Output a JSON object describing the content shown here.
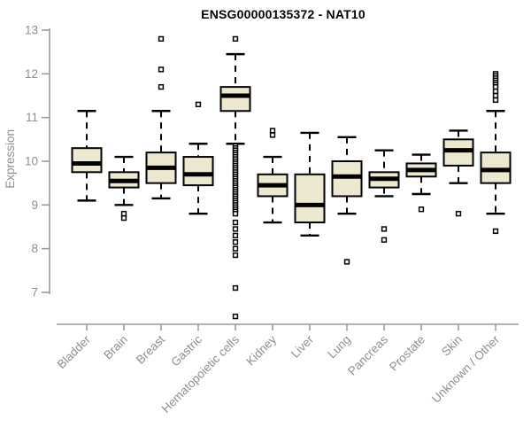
{
  "chart_data": {
    "type": "boxplot",
    "title": "ENSG00000135372 - NAT10",
    "ylabel": "Expression",
    "ylim": [
      7,
      13
    ],
    "yticks": [
      7,
      8,
      9,
      10,
      11,
      12,
      13
    ],
    "grid": false,
    "categories": [
      "Bladder",
      "Brain",
      "Breast",
      "Gastric",
      "Hematopoietic cells",
      "Kidney",
      "Liver",
      "Lung",
      "Pancreas",
      "Prostate",
      "Skin",
      "Unknown / Other"
    ],
    "series": [
      {
        "category": "Bladder",
        "whisker_low": 9.1,
        "q1": 9.75,
        "median": 9.95,
        "q3": 10.3,
        "whisker_high": 11.15,
        "outliers": []
      },
      {
        "category": "Brain",
        "whisker_low": 9.0,
        "q1": 9.4,
        "median": 9.55,
        "q3": 9.75,
        "whisker_high": 10.1,
        "outliers": [
          8.8,
          8.7
        ]
      },
      {
        "category": "Breast",
        "whisker_low": 9.15,
        "q1": 9.5,
        "median": 9.85,
        "q3": 10.2,
        "whisker_high": 11.15,
        "outliers": [
          12.8,
          12.1,
          11.7
        ]
      },
      {
        "category": "Gastric",
        "whisker_low": 8.8,
        "q1": 9.45,
        "median": 9.7,
        "q3": 10.1,
        "whisker_high": 10.4,
        "outliers": [
          11.3
        ]
      },
      {
        "category": "Hematopoietic cells",
        "whisker_low": 10.4,
        "q1": 11.15,
        "median": 11.5,
        "q3": 11.7,
        "whisker_high": 12.45,
        "outliers": [
          12.8,
          10.35,
          10.3,
          10.25,
          10.2,
          10.15,
          10.1,
          10.05,
          10.0,
          9.95,
          9.9,
          9.85,
          9.8,
          9.75,
          9.7,
          9.65,
          9.6,
          9.55,
          9.5,
          9.45,
          9.4,
          9.35,
          9.3,
          9.25,
          9.2,
          9.15,
          9.1,
          9.05,
          9.0,
          8.95,
          8.9,
          8.85,
          8.8,
          8.6,
          8.45,
          8.3,
          8.15,
          8.0,
          7.85,
          7.1,
          6.45
        ]
      },
      {
        "category": "Kidney",
        "whisker_low": 8.6,
        "q1": 9.2,
        "median": 9.45,
        "q3": 9.7,
        "whisker_high": 10.1,
        "outliers": [
          10.7,
          10.6
        ]
      },
      {
        "category": "Liver",
        "whisker_low": 8.3,
        "q1": 8.6,
        "median": 9.0,
        "q3": 9.7,
        "whisker_high": 10.65,
        "outliers": []
      },
      {
        "category": "Lung",
        "whisker_low": 8.8,
        "q1": 9.2,
        "median": 9.65,
        "q3": 10.0,
        "whisker_high": 10.55,
        "outliers": [
          7.7
        ]
      },
      {
        "category": "Pancreas",
        "whisker_low": 9.2,
        "q1": 9.4,
        "median": 9.6,
        "q3": 9.75,
        "whisker_high": 10.25,
        "outliers": [
          8.45,
          8.2
        ]
      },
      {
        "category": "Prostate",
        "whisker_low": 9.25,
        "q1": 9.65,
        "median": 9.8,
        "q3": 9.95,
        "whisker_high": 10.15,
        "outliers": [
          8.9
        ]
      },
      {
        "category": "Skin",
        "whisker_low": 9.5,
        "q1": 9.9,
        "median": 10.25,
        "q3": 10.5,
        "whisker_high": 10.7,
        "outliers": [
          8.8
        ]
      },
      {
        "category": "Unknown / Other",
        "whisker_low": 8.8,
        "q1": 9.5,
        "median": 9.8,
        "q3": 10.2,
        "whisker_high": 11.15,
        "outliers": [
          12.0,
          11.95,
          11.9,
          11.85,
          11.8,
          11.75,
          11.7,
          11.6,
          11.5,
          11.4,
          8.4
        ]
      }
    ],
    "colors": {
      "box_fill": "#EDE8D0",
      "box_border": "#000000",
      "median": "#000000",
      "whisker": "#000000",
      "outlier_border": "#000000",
      "outlier_fill": "#ffffff",
      "axis": "#9a9a9a",
      "axis_text": "#8f8f8f",
      "title": "#000000"
    }
  }
}
